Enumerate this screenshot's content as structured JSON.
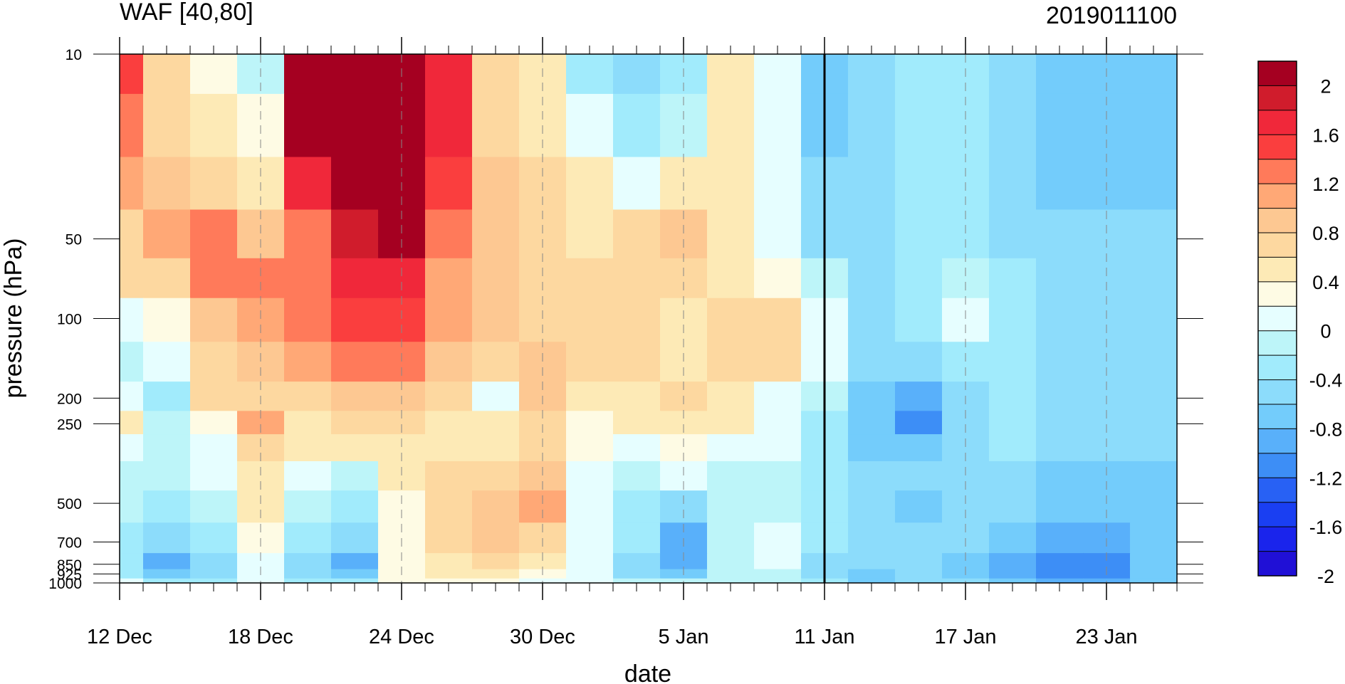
{
  "chart_data": {
    "type": "heatmap",
    "title_left": "WAF [40,80]",
    "title_right": "2019011100",
    "xlabel": "date",
    "ylabel": "pressure (hPa)",
    "y_scale": "log",
    "y_inverted": true,
    "ylim": [
      1000,
      10
    ],
    "xlim": [
      "2018-12-12",
      "2019-01-26"
    ],
    "x_tick_labels": [
      "12 Dec",
      "18 Dec",
      "24 Dec",
      "30 Dec",
      "5 Jan",
      "11 Jan",
      "17 Jan",
      "23 Jan"
    ],
    "x_tick_dates": [
      "2018-12-12",
      "2018-12-18",
      "2018-12-24",
      "2018-12-30",
      "2019-01-05",
      "2019-01-11",
      "2019-01-17",
      "2019-01-23"
    ],
    "y_tick_labels": [
      "10",
      "50",
      "100",
      "200",
      "250",
      "500",
      "700",
      "850",
      "925",
      "1000"
    ],
    "y_tick_values": [
      10,
      50,
      100,
      200,
      250,
      500,
      700,
      850,
      925,
      1000
    ],
    "reference_line_date": "2019-01-11",
    "grid": "dashed vertical lines at labelled dates",
    "legend_placement": "right",
    "colorbar": {
      "labels": [
        "2",
        "1.6",
        "1.2",
        "0.8",
        "0.4",
        "0",
        "-0.4",
        "-0.8",
        "-1.2",
        "-1.6",
        "-2"
      ],
      "levels": [
        2.0,
        1.8,
        1.6,
        1.4,
        1.2,
        1.0,
        0.8,
        0.6,
        0.4,
        0.2,
        0.0,
        -0.2,
        -0.4,
        -0.6,
        -0.8,
        -1.0,
        -1.2,
        -1.4,
        -1.6,
        -1.8,
        -2.0
      ],
      "colors": [
        "#a50021",
        "#d01c2c",
        "#f0283a",
        "#fa3e3e",
        "#ff7a5a",
        "#ffa876",
        "#fdc892",
        "#fdd8a0",
        "#fdeab6",
        "#fefbe4",
        "#e6feff",
        "#bdf5f9",
        "#a1ebfc",
        "#8cdcfb",
        "#73ccfb",
        "#59b0fa",
        "#3d8ef6",
        "#2861f4",
        "#1a3ff2",
        "#1a24ec",
        "#2010d6"
      ]
    },
    "day_starts": [
      "2018-12-12",
      "2018-12-14",
      "2018-12-16",
      "2018-12-18",
      "2018-12-20",
      "2018-12-22",
      "2018-12-24",
      "2018-12-26",
      "2018-12-28",
      "2018-12-30",
      "2019-01-01",
      "2019-01-03",
      "2019-01-05",
      "2019-01-07",
      "2019-01-09",
      "2019-01-11",
      "2019-01-13",
      "2019-01-15",
      "2019-01-17",
      "2019-01-19",
      "2019-01-21",
      "2019-01-23",
      "2019-01-25"
    ],
    "pressure_levels": [
      10,
      20,
      30,
      50,
      70,
      100,
      150,
      200,
      250,
      300,
      400,
      500,
      700,
      850,
      925,
      1000
    ],
    "values": [
      [
        1.4,
        0.6,
        0.2,
        -0.2,
        2.6,
        2.8,
        2.8,
        1.6,
        0.6,
        0.4,
        -0.4,
        -0.6,
        -0.4,
        0.4,
        0.0,
        -0.8,
        -0.6,
        -0.4,
        -0.4,
        -0.6,
        -0.8,
        -0.8,
        -0.8
      ],
      [
        1.2,
        0.6,
        0.4,
        0.2,
        2.0,
        2.6,
        2.6,
        1.6,
        0.6,
        0.4,
        0.0,
        -0.4,
        -0.2,
        0.4,
        0.0,
        -0.8,
        -0.6,
        -0.4,
        -0.4,
        -0.6,
        -0.8,
        -0.8,
        -0.8
      ],
      [
        1.0,
        0.8,
        0.6,
        0.4,
        1.6,
        2.4,
        2.4,
        1.4,
        0.8,
        0.6,
        0.4,
        0.0,
        0.4,
        0.4,
        0.0,
        -0.6,
        -0.6,
        -0.4,
        -0.4,
        -0.6,
        -0.8,
        -0.8,
        -0.8
      ],
      [
        0.6,
        1.0,
        1.2,
        0.8,
        1.2,
        1.8,
        2.0,
        1.2,
        0.8,
        0.6,
        0.4,
        0.6,
        0.8,
        0.4,
        0.0,
        -0.6,
        -0.6,
        -0.4,
        -0.4,
        -0.6,
        -0.6,
        -0.6,
        -0.6
      ],
      [
        0.6,
        0.6,
        1.2,
        1.2,
        1.2,
        1.6,
        1.6,
        1.0,
        0.8,
        0.6,
        0.6,
        0.6,
        0.6,
        0.4,
        0.2,
        -0.2,
        -0.6,
        -0.4,
        -0.2,
        -0.4,
        -0.6,
        -0.6,
        -0.6
      ],
      [
        0.0,
        0.2,
        0.8,
        1.0,
        1.2,
        1.4,
        1.4,
        1.0,
        0.8,
        0.6,
        0.6,
        0.6,
        0.4,
        0.6,
        0.6,
        0.0,
        -0.6,
        -0.4,
        0.0,
        -0.4,
        -0.6,
        -0.6,
        -0.6
      ],
      [
        -0.2,
        0.0,
        0.6,
        0.8,
        1.0,
        1.2,
        1.2,
        0.8,
        0.6,
        0.8,
        0.6,
        0.6,
        0.4,
        0.6,
        0.6,
        0.0,
        -0.6,
        -0.6,
        -0.4,
        -0.4,
        -0.6,
        -0.6,
        -0.6
      ],
      [
        0.0,
        -0.4,
        0.6,
        0.6,
        0.6,
        0.8,
        0.8,
        0.6,
        0.0,
        0.8,
        0.4,
        0.4,
        0.6,
        0.4,
        0.0,
        -0.2,
        -0.8,
        -1.0,
        -0.6,
        -0.4,
        -0.6,
        -0.6,
        -0.6
      ],
      [
        0.4,
        -0.2,
        0.2,
        1.0,
        0.4,
        0.6,
        0.6,
        0.4,
        0.4,
        0.6,
        0.2,
        0.4,
        0.4,
        0.4,
        0.0,
        -0.4,
        -0.8,
        -1.2,
        -0.6,
        -0.4,
        -0.6,
        -0.6,
        -0.6
      ],
      [
        0.0,
        -0.2,
        0.0,
        0.6,
        0.4,
        0.4,
        0.4,
        0.4,
        0.4,
        0.6,
        0.2,
        0.0,
        0.2,
        0.0,
        0.0,
        -0.4,
        -0.8,
        -0.8,
        -0.6,
        -0.4,
        -0.6,
        -0.6,
        -0.6
      ],
      [
        -0.2,
        -0.2,
        0.0,
        0.4,
        0.0,
        -0.2,
        0.4,
        0.6,
        0.6,
        0.8,
        0.0,
        -0.2,
        0.0,
        -0.2,
        -0.2,
        -0.4,
        -0.6,
        -0.6,
        -0.6,
        -0.6,
        -0.8,
        -0.8,
        -0.8
      ],
      [
        -0.2,
        -0.4,
        -0.2,
        0.4,
        -0.2,
        -0.4,
        0.2,
        0.6,
        0.8,
        1.0,
        0.0,
        -0.4,
        -0.6,
        -0.2,
        -0.2,
        -0.4,
        -0.6,
        -0.8,
        -0.6,
        -0.6,
        -0.8,
        -0.8,
        -0.8
      ],
      [
        -0.4,
        -0.6,
        -0.4,
        0.2,
        -0.4,
        -0.6,
        0.2,
        0.6,
        0.8,
        0.6,
        0.0,
        -0.4,
        -1.0,
        -0.2,
        0.0,
        -0.4,
        -0.6,
        -0.6,
        -0.6,
        -0.8,
        -1.0,
        -1.0,
        -0.8
      ],
      [
        -0.4,
        -1.0,
        -0.6,
        0.0,
        -0.6,
        -1.0,
        0.2,
        0.4,
        0.6,
        0.4,
        0.0,
        -0.6,
        -1.0,
        -0.2,
        0.0,
        -0.6,
        -0.6,
        -0.6,
        -0.8,
        -1.0,
        -1.2,
        -1.2,
        -0.8
      ],
      [
        -0.4,
        -0.8,
        -0.6,
        0.0,
        -0.6,
        -0.8,
        0.2,
        0.4,
        0.4,
        0.2,
        0.0,
        -0.6,
        -0.8,
        -0.2,
        -0.2,
        -0.6,
        -0.8,
        -0.6,
        -0.8,
        -1.0,
        -1.2,
        -1.2,
        -0.8
      ],
      [
        0.0,
        -0.4,
        -0.4,
        0.0,
        -0.4,
        -0.4,
        0.2,
        0.2,
        0.2,
        0.0,
        0.0,
        -0.2,
        -0.2,
        -0.2,
        -0.2,
        -0.4,
        -0.8,
        -0.6,
        -0.6,
        -0.8,
        -1.0,
        -1.0,
        -0.8
      ]
    ]
  }
}
